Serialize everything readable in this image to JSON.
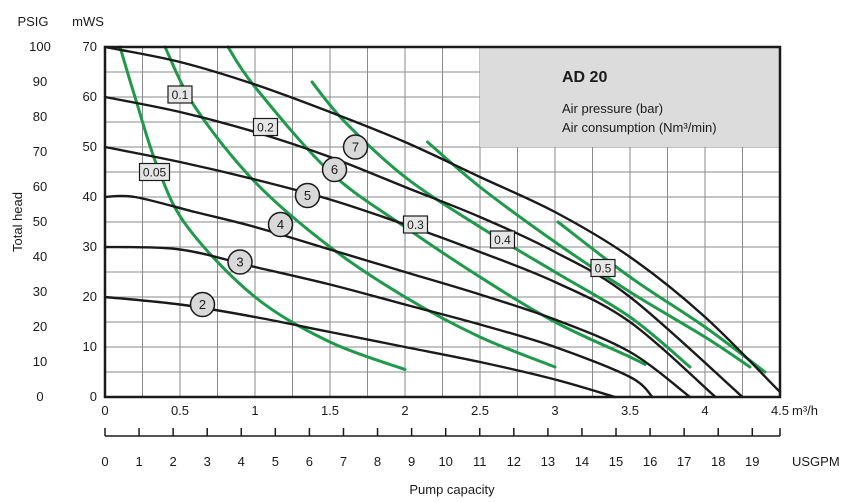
{
  "chart_data": {
    "type": "line",
    "title": "AD 20",
    "legend_lines": [
      "Air pressure (bar)",
      "Air consumption (Nm³/min)"
    ],
    "legend_placement": "top-right",
    "grid": true,
    "x_axis": {
      "unit": "m³/h",
      "range": [
        0,
        4.5
      ],
      "ticks": [
        "0",
        "0.5",
        "1",
        "1.5",
        "2",
        "2.5",
        "3",
        "3.5",
        "4",
        "4.5"
      ]
    },
    "x2_axis": {
      "unit": "USGPM",
      "ticks": [
        "0",
        "1",
        "2",
        "3",
        "4",
        "5",
        "6",
        "7",
        "8",
        "9",
        "10",
        "11",
        "12",
        "13",
        "14",
        "15",
        "16",
        "17",
        "18",
        "19"
      ]
    },
    "xlabel": "Pump capacity",
    "y_axis": {
      "unit": "mWS",
      "range": [
        0,
        70
      ],
      "ticks": [
        "0",
        "10",
        "20",
        "30",
        "40",
        "50",
        "60",
        "70"
      ]
    },
    "y2_axis": {
      "unit": "PSIG",
      "ticks": [
        "0",
        "10",
        "20",
        "30",
        "40",
        "50",
        "60",
        "70",
        "80",
        "90",
        "100"
      ]
    },
    "ylabel": "Total head",
    "pressure_series": [
      {
        "name": "2",
        "points": [
          [
            0,
            20
          ],
          [
            0.5,
            18.5
          ],
          [
            1,
            16
          ],
          [
            1.5,
            13
          ],
          [
            2,
            10
          ],
          [
            2.5,
            7
          ],
          [
            3,
            3.5
          ],
          [
            3.4,
            0
          ]
        ]
      },
      {
        "name": "3",
        "points": [
          [
            0,
            30
          ],
          [
            0.5,
            29.5
          ],
          [
            1,
            26
          ],
          [
            1.5,
            22.5
          ],
          [
            2,
            18.5
          ],
          [
            2.5,
            14.5
          ],
          [
            3,
            10
          ],
          [
            3.5,
            4
          ],
          [
            3.65,
            0
          ]
        ]
      },
      {
        "name": "4",
        "points": [
          [
            0,
            40
          ],
          [
            0.2,
            40
          ],
          [
            0.6,
            37
          ],
          [
            1,
            34
          ],
          [
            1.5,
            29.5
          ],
          [
            2,
            25
          ],
          [
            2.5,
            20.5
          ],
          [
            3,
            15.5
          ],
          [
            3.5,
            9
          ],
          [
            3.9,
            0
          ]
        ]
      },
      {
        "name": "5",
        "points": [
          [
            0,
            50
          ],
          [
            0.5,
            47
          ],
          [
            1,
            43.5
          ],
          [
            1.5,
            39.5
          ],
          [
            2,
            34.5
          ],
          [
            2.5,
            29
          ],
          [
            3,
            23
          ],
          [
            3.5,
            15
          ],
          [
            4.07,
            0
          ]
        ]
      },
      {
        "name": "6",
        "points": [
          [
            0,
            60
          ],
          [
            0.5,
            57
          ],
          [
            1,
            53
          ],
          [
            1.5,
            48
          ],
          [
            2,
            42
          ],
          [
            2.5,
            36
          ],
          [
            3,
            29
          ],
          [
            3.5,
            20
          ],
          [
            4.25,
            0
          ]
        ]
      },
      {
        "name": "7",
        "points": [
          [
            0,
            70
          ],
          [
            0.5,
            67
          ],
          [
            1,
            62.5
          ],
          [
            1.5,
            57
          ],
          [
            2,
            51
          ],
          [
            2.5,
            44
          ],
          [
            3,
            37
          ],
          [
            3.5,
            28
          ],
          [
            4,
            16
          ],
          [
            4.5,
            1
          ]
        ]
      }
    ],
    "pressure_label_positions": {
      "2": [
        0.65,
        18.5
      ],
      "3": [
        0.9,
        27
      ],
      "4": [
        1.17,
        34.5
      ],
      "5": [
        1.35,
        40.3
      ],
      "6": [
        1.53,
        45.5
      ],
      "7": [
        1.67,
        50
      ]
    },
    "consumption_series": [
      {
        "name": "0.05",
        "points": [
          [
            0.1,
            70
          ],
          [
            0.2,
            60
          ],
          [
            0.35,
            46
          ],
          [
            0.55,
            34
          ],
          [
            1,
            20
          ],
          [
            1.5,
            11
          ],
          [
            2,
            5.5
          ]
        ]
      },
      {
        "name": "0.1",
        "points": [
          [
            0.4,
            70
          ],
          [
            0.6,
            58
          ],
          [
            1,
            43
          ],
          [
            1.5,
            30
          ],
          [
            2,
            20
          ],
          [
            2.5,
            12
          ],
          [
            3,
            6
          ]
        ]
      },
      {
        "name": "0.2",
        "points": [
          [
            0.82,
            70
          ],
          [
            1,
            62
          ],
          [
            1.5,
            45
          ],
          [
            2,
            34
          ],
          [
            2.5,
            24
          ],
          [
            3,
            15
          ],
          [
            3.5,
            8
          ],
          [
            3.6,
            6.5
          ]
        ]
      },
      {
        "name": "0.3",
        "points": [
          [
            1.38,
            63
          ],
          [
            1.6,
            55
          ],
          [
            2,
            44
          ],
          [
            2.5,
            34
          ],
          [
            3,
            25
          ],
          [
            3.5,
            16
          ],
          [
            3.9,
            6
          ]
        ]
      },
      {
        "name": "0.4",
        "points": [
          [
            2.15,
            51
          ],
          [
            2.5,
            42
          ],
          [
            3,
            31
          ],
          [
            3.5,
            21
          ],
          [
            4,
            12
          ],
          [
            4.3,
            6
          ]
        ]
      },
      {
        "name": "0.5",
        "points": [
          [
            3.02,
            35
          ],
          [
            3.5,
            24
          ],
          [
            4,
            14
          ],
          [
            4.4,
            5
          ]
        ]
      }
    ],
    "consumption_label_positions": {
      "0.05": [
        0.33,
        45
      ],
      "0.1": [
        0.5,
        60.5
      ],
      "0.2": [
        1.07,
        54
      ],
      "0.3": [
        2.07,
        34.5
      ],
      "0.4": [
        2.65,
        31.5
      ],
      "0.5": [
        3.32,
        25.8
      ]
    },
    "colors": {
      "pressure": "#1a1a1a",
      "consumption": "#1f9a4a",
      "grid": "#8a8a8a",
      "legend_bg": "#dcdcdc",
      "bubble_fill": "#d9d9d9",
      "box_fill": "#e6e6e6"
    }
  }
}
